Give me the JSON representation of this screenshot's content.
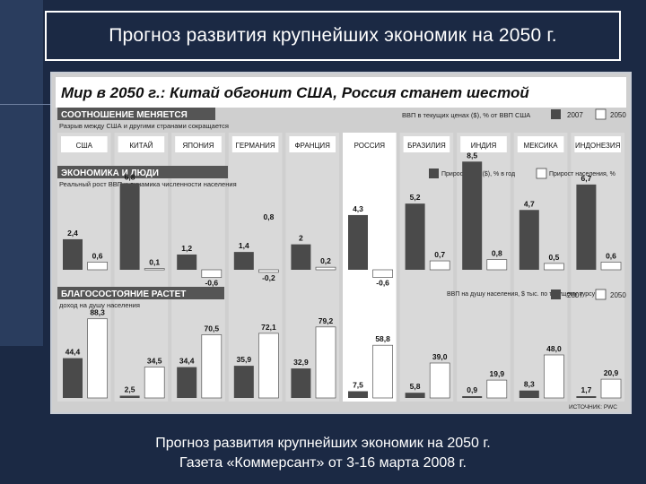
{
  "slide": {
    "title": "Прогноз развития крупнейших экономик  на 2050 г.",
    "caption_line1": "Прогноз развития крупнейших экономик на 2050 г.",
    "caption_line2": "Газета «Коммерсант» от 3-16 марта 2008 г."
  },
  "colors": {
    "background": "#1b2944",
    "bar_dark": "#4a4a4a",
    "bar_light": "#ffffff",
    "panel": "#cfcfcf"
  },
  "chart_data": {
    "title": "Мир в 2050 г.: Китай обгонит США, Россия станет шестой",
    "source": "ИСТОЧНИК: PWC",
    "categories": [
      "США",
      "КИТАЙ",
      "ЯПОНИЯ",
      "ГЕРМАНИЯ",
      "ФРАНЦИЯ",
      "РОССИЯ",
      "БРАЗИЛИЯ",
      "ИНДИЯ",
      "МЕКСИКА",
      "ИНДОНЕЗИЯ"
    ],
    "charts": [
      {
        "type": "bar",
        "header": "СООТНОШЕНИЕ МЕНЯЕТСЯ",
        "subtitle": "Разрыв между США и другими странами сокращается",
        "legend_title": "ВВП в текущих ценах ($), % от ВВП США",
        "series": [
          {
            "name": "2007"
          },
          {
            "name": "2050"
          }
        ]
      },
      {
        "type": "bar",
        "header": "ЭКОНОМИКА И ЛЮДИ",
        "subtitle": "Реальный рост ВВП и динамика численности населения",
        "ylim": [
          -0.8,
          8.7
        ],
        "series": [
          {
            "name": "Прирост ВВП ($), % в год",
            "values": [
              2.4,
              6.8,
              1.2,
              1.4,
              2,
              4.3,
              5.2,
              8.5,
              4.7,
              6.7
            ],
            "labels": [
              "2,4",
              "6,8",
              "1,2",
              "1,4",
              "2",
              "4,3",
              "5,2",
              "8,5",
              "4,7",
              "6,7"
            ]
          },
          {
            "name": "Прирост населения, %",
            "values": [
              0.6,
              0.1,
              -0.6,
              -0.2,
              0.2,
              -0.6,
              0.7,
              0.8,
              0.5,
              0.6
            ],
            "labels": [
              "0,6",
              "0,1",
              "-0,6",
              "-0,2",
              "0,2",
              "-0,6",
              "0,7",
              "0,8",
              "0,5",
              "0,6"
            ]
          }
        ],
        "extra_labels": [
          {
            "category_index": 3,
            "text": "0,8"
          }
        ]
      },
      {
        "type": "bar",
        "header": "БЛАГОСОСТОЯНИЕ РАСТЕТ",
        "subtitle": "доход на душу населения",
        "legend_title": "ВВП на душу населения, $ тыс. по текущему курсу",
        "ylim": [
          0,
          92
        ],
        "series": [
          {
            "name": "2007",
            "values": [
              44.4,
              2.5,
              34.4,
              35.9,
              32.9,
              7.5,
              5.8,
              0.9,
              8.3,
              1.7
            ],
            "labels": [
              "44,4",
              "2,5",
              "34,4",
              "35,9",
              "32,9",
              "7,5",
              "5,8",
              "0,9",
              "8,3",
              "1,7"
            ]
          },
          {
            "name": "2050",
            "values": [
              88.3,
              34.5,
              70.5,
              72.1,
              79.2,
              58.8,
              39,
              19.9,
              48,
              20.9
            ],
            "labels": [
              "88,3",
              "34,5",
              "70,5",
              "72,1",
              "79,2",
              "58,8",
              "39,0",
              "19,9",
              "48,0",
              "20,9"
            ]
          }
        ]
      }
    ]
  }
}
